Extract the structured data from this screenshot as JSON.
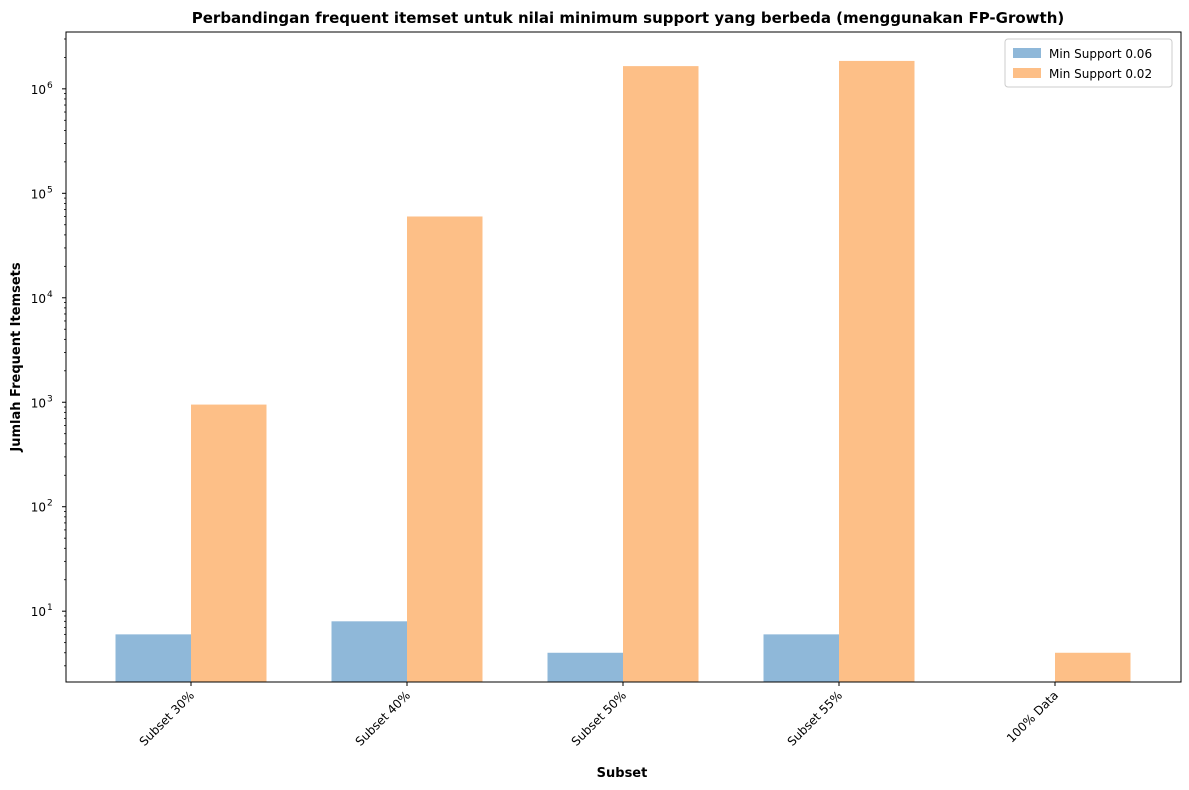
{
  "chart_data": {
    "type": "bar",
    "title": "Perbandingan frequent itemset untuk nilai minimum support yang berbeda (menggunakan FP-Growth)",
    "xlabel": "Subset",
    "ylabel": "Jumlah Frequent Itemsets",
    "categories": [
      "Subset 30%",
      "Subset 40%",
      "Subset 50%",
      "Subset 55%",
      "100% Data"
    ],
    "series": [
      {
        "name": "Min Support 0.06",
        "color": "#8fb8d9",
        "values": [
          6,
          8,
          4,
          6,
          null
        ]
      },
      {
        "name": "Min Support 0.02",
        "color": "#fdbf87",
        "values": [
          950,
          60000,
          1650000,
          1850000,
          4
        ]
      }
    ],
    "yscale": "log",
    "ylim": [
      2.1,
      3500000
    ],
    "yticks": [
      {
        "value": 10,
        "mantissa": "10",
        "exp": "1"
      },
      {
        "value": 100,
        "mantissa": "10",
        "exp": "2"
      },
      {
        "value": 1000,
        "mantissa": "10",
        "exp": "3"
      },
      {
        "value": 10000,
        "mantissa": "10",
        "exp": "4"
      },
      {
        "value": 100000,
        "mantissa": "10",
        "exp": "5"
      },
      {
        "value": 1000000,
        "mantissa": "10",
        "exp": "6"
      }
    ],
    "legend_position": "top-right",
    "grid": false
  }
}
